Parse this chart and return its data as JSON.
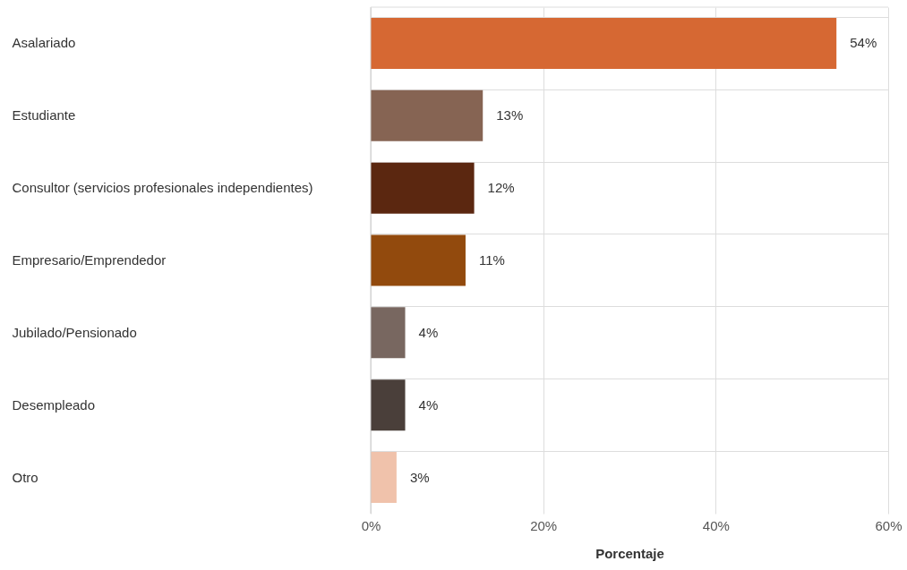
{
  "chart_data": {
    "type": "bar",
    "orientation": "horizontal",
    "xlabel": "Porcentaje",
    "categories": [
      "Asalariado",
      "Estudiante",
      "Consultor (servicios profesionales independientes)",
      "Empresario/Emprendedor",
      "Jubilado/Pensionado",
      "Desempleado",
      "Otro"
    ],
    "values": [
      54,
      13,
      12,
      11,
      4,
      4,
      3
    ],
    "colors": [
      "#d66833",
      "#866453",
      "#5b2710",
      "#924a0d",
      "#786760",
      "#4a3f3a",
      "#f0c2ab"
    ],
    "value_labels": [
      "54%",
      "13%",
      "12%",
      "11%",
      "4%",
      "4%",
      "3%"
    ],
    "xlim": [
      0,
      60
    ],
    "xticks": [
      {
        "value": 0,
        "label": "0%"
      },
      {
        "value": 20,
        "label": "20%"
      },
      {
        "value": 40,
        "label": "40%"
      },
      {
        "value": 60,
        "label": "60%"
      }
    ],
    "grid": true
  }
}
